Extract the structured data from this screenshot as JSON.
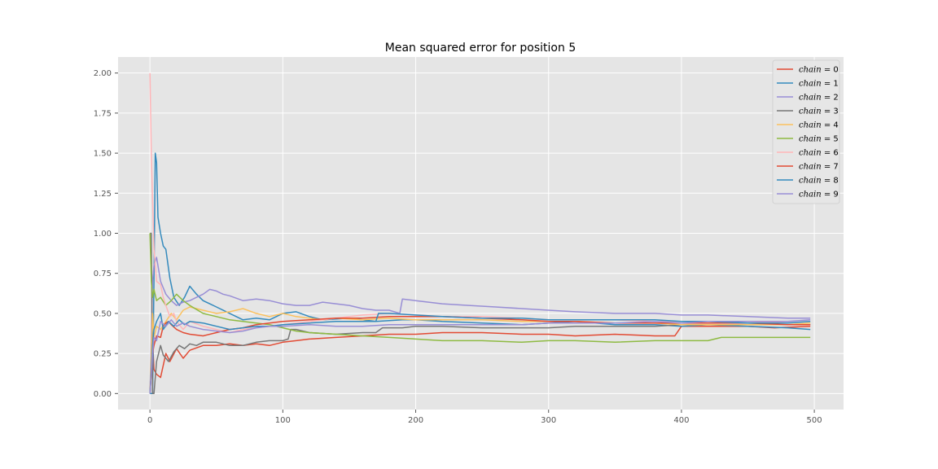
{
  "chart_data": {
    "type": "line",
    "title": "Mean squared error for position 5",
    "xlabel": "",
    "ylabel": "",
    "xlim": [
      -24,
      522
    ],
    "ylim": [
      -0.1,
      2.1
    ],
    "xticks": [
      0,
      100,
      200,
      300,
      400,
      500
    ],
    "xtick_labels": [
      "0",
      "100",
      "200",
      "300",
      "400",
      "500"
    ],
    "yticks": [
      0.0,
      0.25,
      0.5,
      0.75,
      1.0,
      1.25,
      1.5,
      1.75,
      2.0
    ],
    "ytick_labels": [
      "0.00",
      "0.25",
      "0.50",
      "0.75",
      "1.00",
      "1.25",
      "1.50",
      "1.75",
      "2.00"
    ],
    "grid": true,
    "legend_position": "top-right",
    "series": [
      {
        "name": "chain = 0",
        "legend_var": "chain",
        "legend_val": "0",
        "color": "#E24A33",
        "x": [
          0,
          2,
          3,
          5,
          8,
          12,
          15,
          20,
          25,
          30,
          40,
          50,
          60,
          70,
          80,
          90,
          100,
          110,
          120,
          140,
          160,
          180,
          200,
          220,
          250,
          280,
          300,
          320,
          350,
          380,
          395,
          400,
          420,
          450,
          470,
          497
        ],
        "y": [
          0.0,
          0.33,
          0.15,
          0.12,
          0.1,
          0.25,
          0.2,
          0.28,
          0.22,
          0.27,
          0.3,
          0.3,
          0.31,
          0.3,
          0.31,
          0.3,
          0.32,
          0.33,
          0.34,
          0.35,
          0.36,
          0.37,
          0.37,
          0.38,
          0.38,
          0.37,
          0.37,
          0.36,
          0.37,
          0.36,
          0.36,
          0.42,
          0.42,
          0.42,
          0.41,
          0.42
        ]
      },
      {
        "name": "chain = 1",
        "legend_var": "chain",
        "legend_val": "1",
        "color": "#348ABD",
        "x": [
          0,
          1,
          2,
          3,
          4,
          5,
          6,
          8,
          10,
          12,
          15,
          18,
          22,
          26,
          30,
          35,
          40,
          50,
          60,
          70,
          80,
          90,
          100,
          110,
          120,
          130,
          150,
          170,
          190,
          200,
          220,
          250,
          280,
          300,
          320,
          350,
          380,
          400,
          420,
          450,
          480,
          497
        ],
        "y": [
          0.0,
          0.0,
          0.0,
          0.7,
          1.5,
          1.44,
          1.1,
          1.0,
          0.92,
          0.9,
          0.72,
          0.6,
          0.55,
          0.6,
          0.67,
          0.62,
          0.58,
          0.54,
          0.5,
          0.46,
          0.47,
          0.46,
          0.5,
          0.51,
          0.48,
          0.46,
          0.47,
          0.45,
          0.46,
          0.46,
          0.45,
          0.44,
          0.43,
          0.44,
          0.45,
          0.43,
          0.43,
          0.42,
          0.43,
          0.42,
          0.41,
          0.4
        ]
      },
      {
        "name": "chain = 2",
        "legend_var": "chain",
        "legend_val": "2",
        "color": "#988ED5",
        "x": [
          0,
          2,
          3,
          5,
          8,
          12,
          16,
          20,
          25,
          30,
          35,
          40,
          45,
          50,
          55,
          60,
          70,
          80,
          90,
          100,
          110,
          120,
          130,
          140,
          150,
          160,
          170,
          180,
          188,
          190,
          200,
          220,
          240,
          260,
          280,
          300,
          320,
          350,
          380,
          400,
          420,
          450,
          480,
          497
        ],
        "y": [
          0.0,
          0.7,
          0.8,
          0.85,
          0.7,
          0.62,
          0.58,
          0.55,
          0.57,
          0.58,
          0.6,
          0.62,
          0.65,
          0.64,
          0.62,
          0.61,
          0.58,
          0.59,
          0.58,
          0.56,
          0.55,
          0.55,
          0.57,
          0.56,
          0.55,
          0.53,
          0.52,
          0.52,
          0.5,
          0.59,
          0.58,
          0.56,
          0.55,
          0.54,
          0.53,
          0.52,
          0.51,
          0.5,
          0.5,
          0.49,
          0.49,
          0.48,
          0.47,
          0.47
        ]
      },
      {
        "name": "chain = 3",
        "legend_var": "chain",
        "legend_val": "3",
        "color": "#777777",
        "x": [
          0,
          1,
          2,
          3,
          5,
          8,
          10,
          14,
          18,
          22,
          26,
          30,
          35,
          40,
          50,
          60,
          70,
          80,
          90,
          100,
          104,
          106,
          110,
          120,
          140,
          160,
          170,
          175,
          190,
          200,
          220,
          250,
          280,
          300,
          320,
          350,
          380,
          400,
          420,
          450,
          470,
          497
        ],
        "y": [
          1.0,
          1.0,
          0.0,
          0.0,
          0.2,
          0.3,
          0.24,
          0.2,
          0.26,
          0.3,
          0.28,
          0.31,
          0.3,
          0.32,
          0.32,
          0.3,
          0.3,
          0.32,
          0.33,
          0.33,
          0.34,
          0.4,
          0.4,
          0.38,
          0.37,
          0.38,
          0.38,
          0.41,
          0.41,
          0.42,
          0.42,
          0.41,
          0.41,
          0.41,
          0.42,
          0.42,
          0.42,
          0.43,
          0.43,
          0.43,
          0.43,
          0.43
        ]
      },
      {
        "name": "chain = 4",
        "legend_var": "chain",
        "legend_val": "4",
        "color": "#FBC15E",
        "x": [
          0,
          2,
          3,
          5,
          8,
          12,
          16,
          20,
          25,
          30,
          40,
          50,
          60,
          70,
          80,
          90,
          100,
          110,
          120,
          130,
          140,
          160,
          180,
          200,
          220,
          250,
          280,
          300,
          320,
          350,
          380,
          400,
          420,
          450,
          480,
          497
        ],
        "y": [
          0.0,
          0.5,
          0.35,
          0.42,
          0.4,
          0.45,
          0.5,
          0.46,
          0.52,
          0.54,
          0.52,
          0.5,
          0.51,
          0.53,
          0.5,
          0.48,
          0.5,
          0.48,
          0.47,
          0.46,
          0.47,
          0.46,
          0.47,
          0.46,
          0.46,
          0.46,
          0.45,
          0.45,
          0.45,
          0.44,
          0.44,
          0.43,
          0.43,
          0.43,
          0.43,
          0.44
        ]
      },
      {
        "name": "chain = 5",
        "legend_var": "chain",
        "legend_val": "5",
        "color": "#8EBA42",
        "x": [
          0,
          1,
          2,
          3,
          5,
          8,
          12,
          16,
          20,
          25,
          30,
          40,
          50,
          60,
          70,
          80,
          90,
          100,
          110,
          120,
          140,
          160,
          180,
          200,
          220,
          250,
          280,
          300,
          320,
          350,
          380,
          400,
          420,
          430,
          450,
          470,
          497
        ],
        "y": [
          1.0,
          0.7,
          0.6,
          0.65,
          0.58,
          0.6,
          0.55,
          0.58,
          0.62,
          0.58,
          0.55,
          0.5,
          0.48,
          0.46,
          0.45,
          0.44,
          0.43,
          0.41,
          0.39,
          0.38,
          0.37,
          0.36,
          0.35,
          0.34,
          0.33,
          0.33,
          0.32,
          0.33,
          0.33,
          0.32,
          0.33,
          0.33,
          0.33,
          0.35,
          0.35,
          0.35,
          0.35
        ]
      },
      {
        "name": "chain = 6",
        "legend_var": "chain",
        "legend_val": "6",
        "color": "#FFB5B8",
        "x": [
          0,
          1,
          2,
          3,
          5,
          8,
          10,
          12,
          15,
          18,
          20,
          25,
          30,
          40,
          50,
          60,
          70,
          80,
          90,
          100,
          120,
          140,
          160,
          180,
          200,
          220,
          250,
          280,
          300,
          320,
          350,
          380,
          400,
          420,
          450,
          480,
          497
        ],
        "y": [
          2.0,
          1.5,
          1.2,
          0.9,
          0.7,
          0.68,
          0.6,
          0.55,
          0.48,
          0.5,
          0.45,
          0.4,
          0.45,
          0.42,
          0.4,
          0.38,
          0.4,
          0.41,
          0.42,
          0.43,
          0.45,
          0.47,
          0.49,
          0.5,
          0.49,
          0.48,
          0.48,
          0.47,
          0.46,
          0.46,
          0.46,
          0.45,
          0.45,
          0.45,
          0.45,
          0.44,
          0.45
        ]
      },
      {
        "name": "chain = 7",
        "legend_var": "chain",
        "legend_val": "7",
        "color": "#E24A33",
        "x": [
          0,
          2,
          3,
          5,
          8,
          10,
          12,
          14,
          16,
          20,
          25,
          30,
          40,
          50,
          60,
          70,
          80,
          90,
          100,
          120,
          140,
          160,
          180,
          200,
          220,
          250,
          280,
          300,
          320,
          350,
          380,
          400,
          420,
          450,
          480,
          497
        ],
        "y": [
          0.0,
          0.25,
          0.3,
          0.36,
          0.35,
          0.42,
          0.44,
          0.45,
          0.43,
          0.4,
          0.38,
          0.37,
          0.36,
          0.38,
          0.4,
          0.41,
          0.43,
          0.44,
          0.45,
          0.46,
          0.47,
          0.47,
          0.48,
          0.48,
          0.48,
          0.47,
          0.46,
          0.45,
          0.45,
          0.44,
          0.44,
          0.44,
          0.44,
          0.44,
          0.43,
          0.43
        ]
      },
      {
        "name": "chain = 8",
        "legend_var": "chain",
        "legend_val": "8",
        "color": "#348ABD",
        "x": [
          0,
          2,
          3,
          5,
          8,
          10,
          14,
          18,
          22,
          26,
          30,
          40,
          50,
          60,
          70,
          80,
          90,
          100,
          120,
          140,
          160,
          170,
          172,
          180,
          200,
          220,
          250,
          280,
          300,
          320,
          350,
          380,
          400,
          420,
          450,
          480,
          497
        ],
        "y": [
          0.0,
          0.3,
          0.4,
          0.45,
          0.5,
          0.4,
          0.45,
          0.42,
          0.46,
          0.43,
          0.45,
          0.44,
          0.42,
          0.4,
          0.41,
          0.42,
          0.42,
          0.43,
          0.44,
          0.45,
          0.45,
          0.45,
          0.5,
          0.5,
          0.49,
          0.48,
          0.47,
          0.47,
          0.46,
          0.46,
          0.46,
          0.46,
          0.45,
          0.45,
          0.44,
          0.44,
          0.45
        ]
      },
      {
        "name": "chain = 9",
        "legend_var": "chain",
        "legend_val": "9",
        "color": "#988ED5",
        "x": [
          0,
          2,
          3,
          5,
          8,
          12,
          16,
          20,
          25,
          30,
          40,
          50,
          60,
          70,
          80,
          90,
          100,
          120,
          140,
          160,
          180,
          200,
          220,
          250,
          280,
          300,
          320,
          350,
          380,
          400,
          420,
          450,
          480,
          497
        ],
        "y": [
          0.0,
          0.25,
          0.35,
          0.33,
          0.45,
          0.42,
          0.46,
          0.42,
          0.44,
          0.42,
          0.4,
          0.39,
          0.38,
          0.39,
          0.41,
          0.42,
          0.42,
          0.43,
          0.42,
          0.42,
          0.43,
          0.43,
          0.43,
          0.43,
          0.43,
          0.44,
          0.44,
          0.44,
          0.45,
          0.44,
          0.45,
          0.45,
          0.45,
          0.46
        ]
      }
    ]
  }
}
